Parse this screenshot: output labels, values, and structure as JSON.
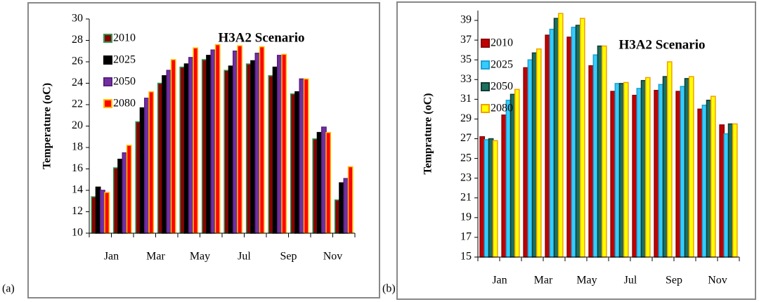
{
  "chart_data": [
    {
      "type": "bar",
      "label": "(a)",
      "title": "H3A2 Scenario",
      "y_label": "Temperature (oC)",
      "categories": [
        "Jan",
        null,
        "Mar",
        null,
        "May",
        null,
        "Jul",
        null,
        "Sep",
        null,
        "Nov",
        null
      ],
      "ylim": [
        10,
        30
      ],
      "yticks": [
        10,
        12,
        14,
        16,
        18,
        20,
        22,
        24,
        26,
        28,
        30
      ],
      "grid": false,
      "series": [
        {
          "name": "2010",
          "color": "#8b0000",
          "edgecolor": "#2e9b57",
          "values": [
            13.4,
            16.1,
            20.4,
            24.0,
            25.5,
            26.2,
            25.2,
            25.8,
            24.7,
            23.0,
            18.8,
            13.1
          ]
        },
        {
          "name": "2025",
          "color": "#000000",
          "edgecolor": "#000000",
          "values": [
            14.3,
            16.9,
            21.7,
            24.7,
            25.8,
            26.6,
            25.6,
            26.1,
            25.5,
            23.2,
            19.4,
            14.7
          ]
        },
        {
          "name": "2050",
          "color": "#7030a0",
          "edgecolor": "#5a2080",
          "values": [
            14.0,
            17.5,
            22.6,
            25.2,
            26.4,
            27.1,
            27.0,
            26.8,
            26.6,
            24.4,
            19.9,
            15.1
          ]
        },
        {
          "name": "2080",
          "color": "#ff0000",
          "edgecolor": "#ffc000",
          "values": [
            13.8,
            18.2,
            23.2,
            26.2,
            27.3,
            27.6,
            27.5,
            27.4,
            26.7,
            24.4,
            19.4,
            16.2
          ]
        }
      ]
    },
    {
      "type": "bar",
      "label": "(b)",
      "title": "H3A2 Scenario",
      "y_label": "Temprature (oC)",
      "categories": [
        "Jan",
        null,
        "Mar",
        null,
        "May",
        null,
        "Jul",
        null,
        "Sep",
        null,
        "Nov",
        null
      ],
      "ylim": [
        15,
        40
      ],
      "yticks": [
        15,
        17,
        19,
        21,
        23,
        25,
        27,
        29,
        31,
        33,
        35,
        37,
        39
      ],
      "grid": false,
      "series": [
        {
          "name": "2010",
          "color": "#c00000",
          "edgecolor": "#8b0000",
          "values": [
            27.2,
            29.4,
            34.2,
            37.5,
            37.3,
            34.4,
            31.8,
            31.4,
            31.9,
            31.8,
            30.0,
            28.4
          ]
        },
        {
          "name": "2025",
          "color": "#33ccff",
          "edgecolor": "#1fa0d0",
          "values": [
            26.9,
            30.9,
            35.0,
            38.1,
            38.3,
            35.5,
            32.6,
            32.1,
            32.5,
            32.3,
            30.4,
            27.5
          ]
        },
        {
          "name": "2050",
          "color": "#1f6f5f",
          "edgecolor": "#0d3d33",
          "values": [
            27.0,
            31.5,
            35.7,
            39.2,
            38.5,
            36.4,
            32.6,
            32.9,
            33.3,
            33.1,
            30.9,
            28.5
          ]
        },
        {
          "name": "2080",
          "color": "#ffff00",
          "edgecolor": "#f0a000",
          "values": [
            26.8,
            32.0,
            36.1,
            39.7,
            39.2,
            36.4,
            32.7,
            33.2,
            34.8,
            33.3,
            31.3,
            28.5
          ]
        }
      ]
    }
  ]
}
